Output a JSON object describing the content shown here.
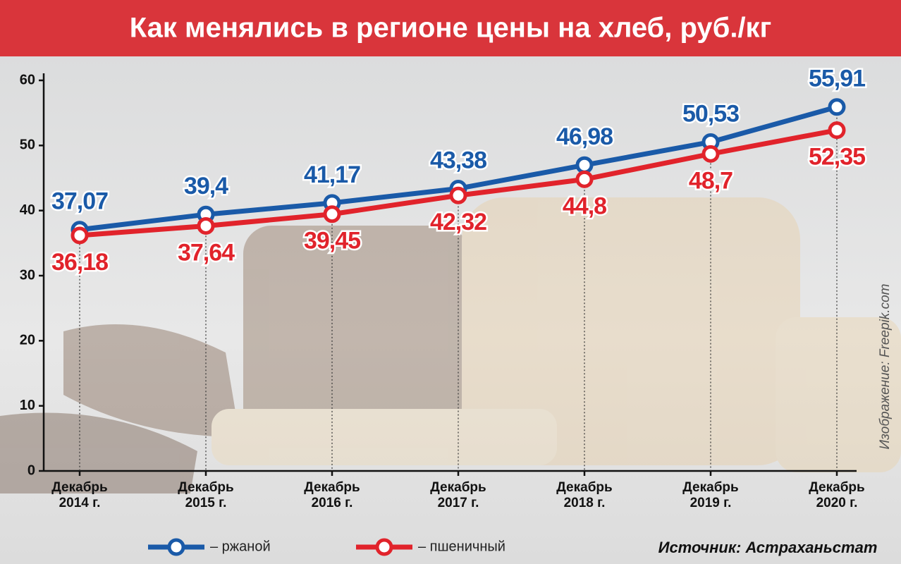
{
  "chart_data": {
    "type": "line",
    "title": "Как менялись в регионе цены на хлеб, руб./кг",
    "categories": [
      "Декабрь 2014 г.",
      "Декабрь 2015 г.",
      "Декабрь 2016 г.",
      "Декабрь 2017 г.",
      "Декабрь 2018 г.",
      "Декабрь 2019 г.",
      "Декабрь 2020 г."
    ],
    "series": [
      {
        "name": "– ржаной",
        "color": "#1a5aa8",
        "values": [
          37.07,
          39.4,
          41.17,
          43.38,
          46.98,
          50.53,
          55.91
        ],
        "value_labels": [
          "37,07",
          "39,4",
          "41,17",
          "43,38",
          "46,98",
          "50,53",
          "55,91"
        ]
      },
      {
        "name": "– пшеничный",
        "color": "#e1232b",
        "values": [
          36.18,
          37.64,
          39.45,
          42.32,
          44.8,
          48.7,
          52.35
        ],
        "value_labels": [
          "36,18",
          "37,64",
          "39,45",
          "42,32",
          "44,8",
          "48,7",
          "52,35"
        ]
      }
    ],
    "ylim": [
      0,
      60
    ],
    "yticks": [
      0,
      10,
      20,
      30,
      40,
      50,
      60
    ],
    "source": "Источник: Астраханьстат",
    "credit": "Изображение: Freepik.com"
  }
}
